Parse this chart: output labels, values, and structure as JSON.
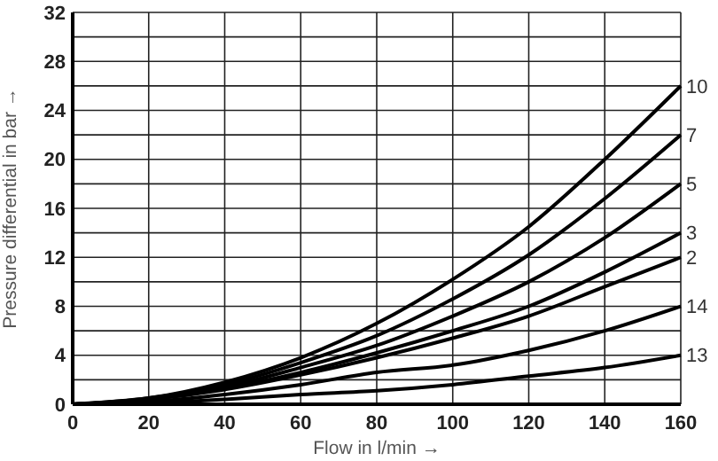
{
  "chart_data": {
    "type": "line",
    "xlabel": "Flow in l/min →",
    "ylabel": "Pressure differential in bar →",
    "x": [
      0,
      20,
      40,
      60,
      80,
      100,
      120,
      140,
      160
    ],
    "xlim": [
      0,
      160
    ],
    "xticks": [
      0,
      20,
      40,
      60,
      80,
      100,
      120,
      140,
      160
    ],
    "ylim": [
      0,
      32
    ],
    "yticks": [
      0,
      {
        "value": 2,
        "label": null
      },
      4,
      {
        "value": 6,
        "label": null
      },
      8,
      {
        "value": 10,
        "label": null
      },
      12,
      {
        "value": 14,
        "label": null
      },
      16,
      {
        "value": 18,
        "label": null
      },
      20,
      {
        "value": 22,
        "label": null
      },
      24,
      {
        "value": 26,
        "label": null
      },
      28,
      {
        "value": 30,
        "label": null
      },
      32
    ],
    "grid": true,
    "marker": "none",
    "line_style": "solid",
    "legend": false,
    "series": [
      {
        "name": "10",
        "color": "#000000",
        "values": [
          0,
          0.5,
          1.8,
          3.8,
          6.6,
          10.2,
          14.5,
          20,
          26
        ]
      },
      {
        "name": "7",
        "color": "#000000",
        "values": [
          0,
          0.5,
          1.6,
          3.4,
          5.6,
          8.6,
          12.2,
          16.8,
          22
        ]
      },
      {
        "name": "5",
        "color": "#000000",
        "values": [
          0,
          0.4,
          1.4,
          3,
          4.8,
          7.2,
          10,
          13.6,
          18
        ]
      },
      {
        "name": "3",
        "color": "#000000",
        "values": [
          0,
          0.4,
          1.3,
          2.6,
          4.2,
          6,
          8,
          10.8,
          14
        ]
      },
      {
        "name": "2",
        "color": "#000000",
        "values": [
          0,
          0.4,
          1.2,
          2.4,
          3.8,
          5.4,
          7.2,
          9.6,
          12
        ]
      },
      {
        "name": "14",
        "color": "#000000",
        "values": [
          0,
          0.2,
          0.8,
          1.6,
          2.6,
          3.2,
          4.4,
          6,
          8
        ]
      },
      {
        "name": "13",
        "color": "#000000",
        "values": [
          0,
          0.1,
          0.4,
          0.8,
          1.1,
          1.6,
          2.3,
          3,
          4
        ]
      }
    ]
  }
}
